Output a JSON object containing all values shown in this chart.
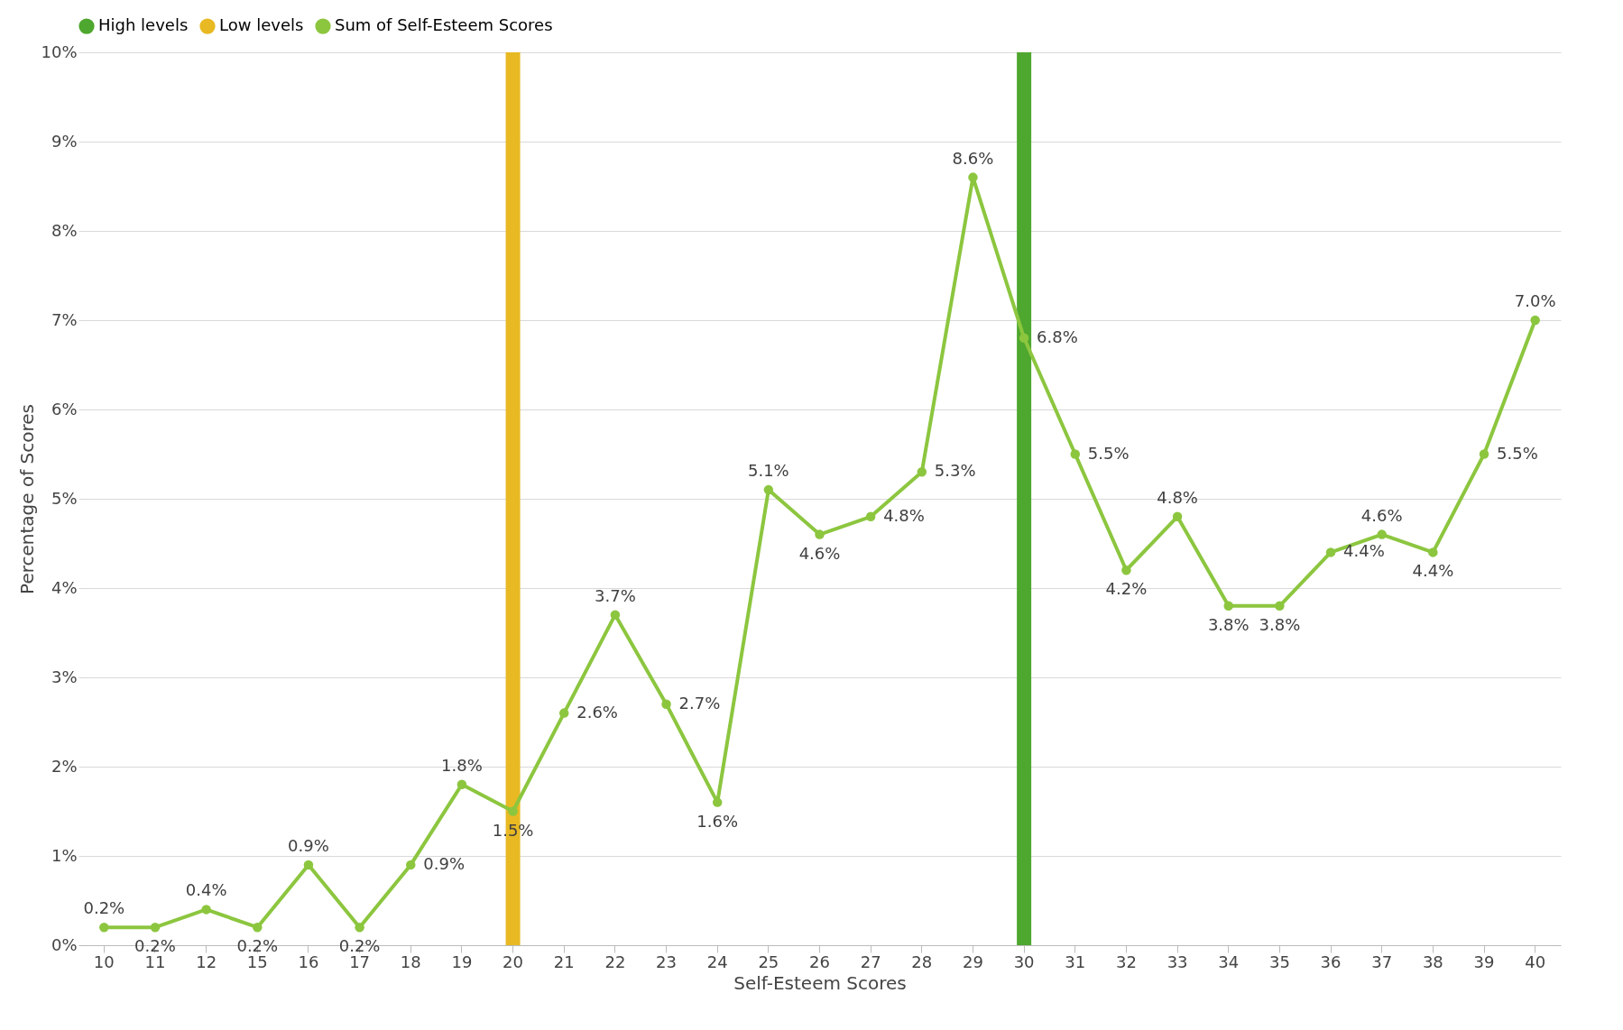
{
  "chart_data": {
    "type": "line",
    "xlabel": "Self-Esteem Scores",
    "ylabel": "Percentage of Scores",
    "categories": [
      "10",
      "11",
      "12",
      "15",
      "16",
      "17",
      "18",
      "19",
      "20",
      "21",
      "22",
      "23",
      "24",
      "25",
      "26",
      "27",
      "28",
      "29",
      "30",
      "31",
      "32",
      "33",
      "34",
      "35",
      "36",
      "37",
      "38",
      "39",
      "40"
    ],
    "ylim": [
      0,
      10
    ],
    "yticks": [
      {
        "value": 0,
        "label": "0%"
      },
      {
        "value": 1,
        "label": "1%"
      },
      {
        "value": 2,
        "label": "2%"
      },
      {
        "value": 3,
        "label": "3%"
      },
      {
        "value": 4,
        "label": "4%"
      },
      {
        "value": 5,
        "label": "5%"
      },
      {
        "value": 6,
        "label": "6%"
      },
      {
        "value": 7,
        "label": "7%"
      },
      {
        "value": 8,
        "label": "8%"
      },
      {
        "value": 9,
        "label": "9%"
      },
      {
        "value": 10,
        "label": "10%"
      }
    ],
    "grid": "y",
    "legend": "top",
    "marker": "circle",
    "series": [
      {
        "name": "High levels",
        "type": "bar",
        "color": "#4ea72e",
        "values": [
          null,
          null,
          null,
          null,
          null,
          null,
          null,
          null,
          null,
          null,
          null,
          null,
          null,
          null,
          null,
          null,
          null,
          null,
          10,
          null,
          null,
          null,
          null,
          null,
          null,
          null,
          null,
          null,
          null
        ]
      },
      {
        "name": "Low levels",
        "type": "bar",
        "color": "#e8b923",
        "values": [
          null,
          null,
          null,
          null,
          null,
          null,
          null,
          null,
          10,
          null,
          null,
          null,
          null,
          null,
          null,
          null,
          null,
          null,
          null,
          null,
          null,
          null,
          null,
          null,
          null,
          null,
          null,
          null,
          null
        ]
      },
      {
        "name": "Sum of Self-Esteem Scores",
        "color": "#8cc63f",
        "values": [
          0.2,
          0.2,
          0.4,
          0.2,
          0.9,
          0.2,
          0.9,
          1.8,
          1.5,
          2.6,
          3.7,
          2.7,
          1.6,
          5.1,
          4.6,
          4.8,
          5.3,
          8.6,
          6.8,
          5.5,
          4.2,
          4.8,
          3.8,
          3.8,
          4.4,
          4.6,
          4.4,
          5.5,
          7.0
        ],
        "value_labels": [
          "0.2%",
          "0.2%",
          "0.4%",
          "0.2%",
          "0.9%",
          "0.2%",
          "0.9%",
          "1.8%",
          "1.5%",
          "2.6%",
          "3.7%",
          "2.7%",
          "1.6%",
          "5.1%",
          "4.6%",
          "4.8%",
          "5.3%",
          "8.6%",
          "6.8%",
          "5.5%",
          "4.2%",
          "4.8%",
          "3.8%",
          "3.8%",
          "4.4%",
          "4.6%",
          "4.4%",
          "5.5%",
          "7.0%"
        ]
      }
    ]
  }
}
